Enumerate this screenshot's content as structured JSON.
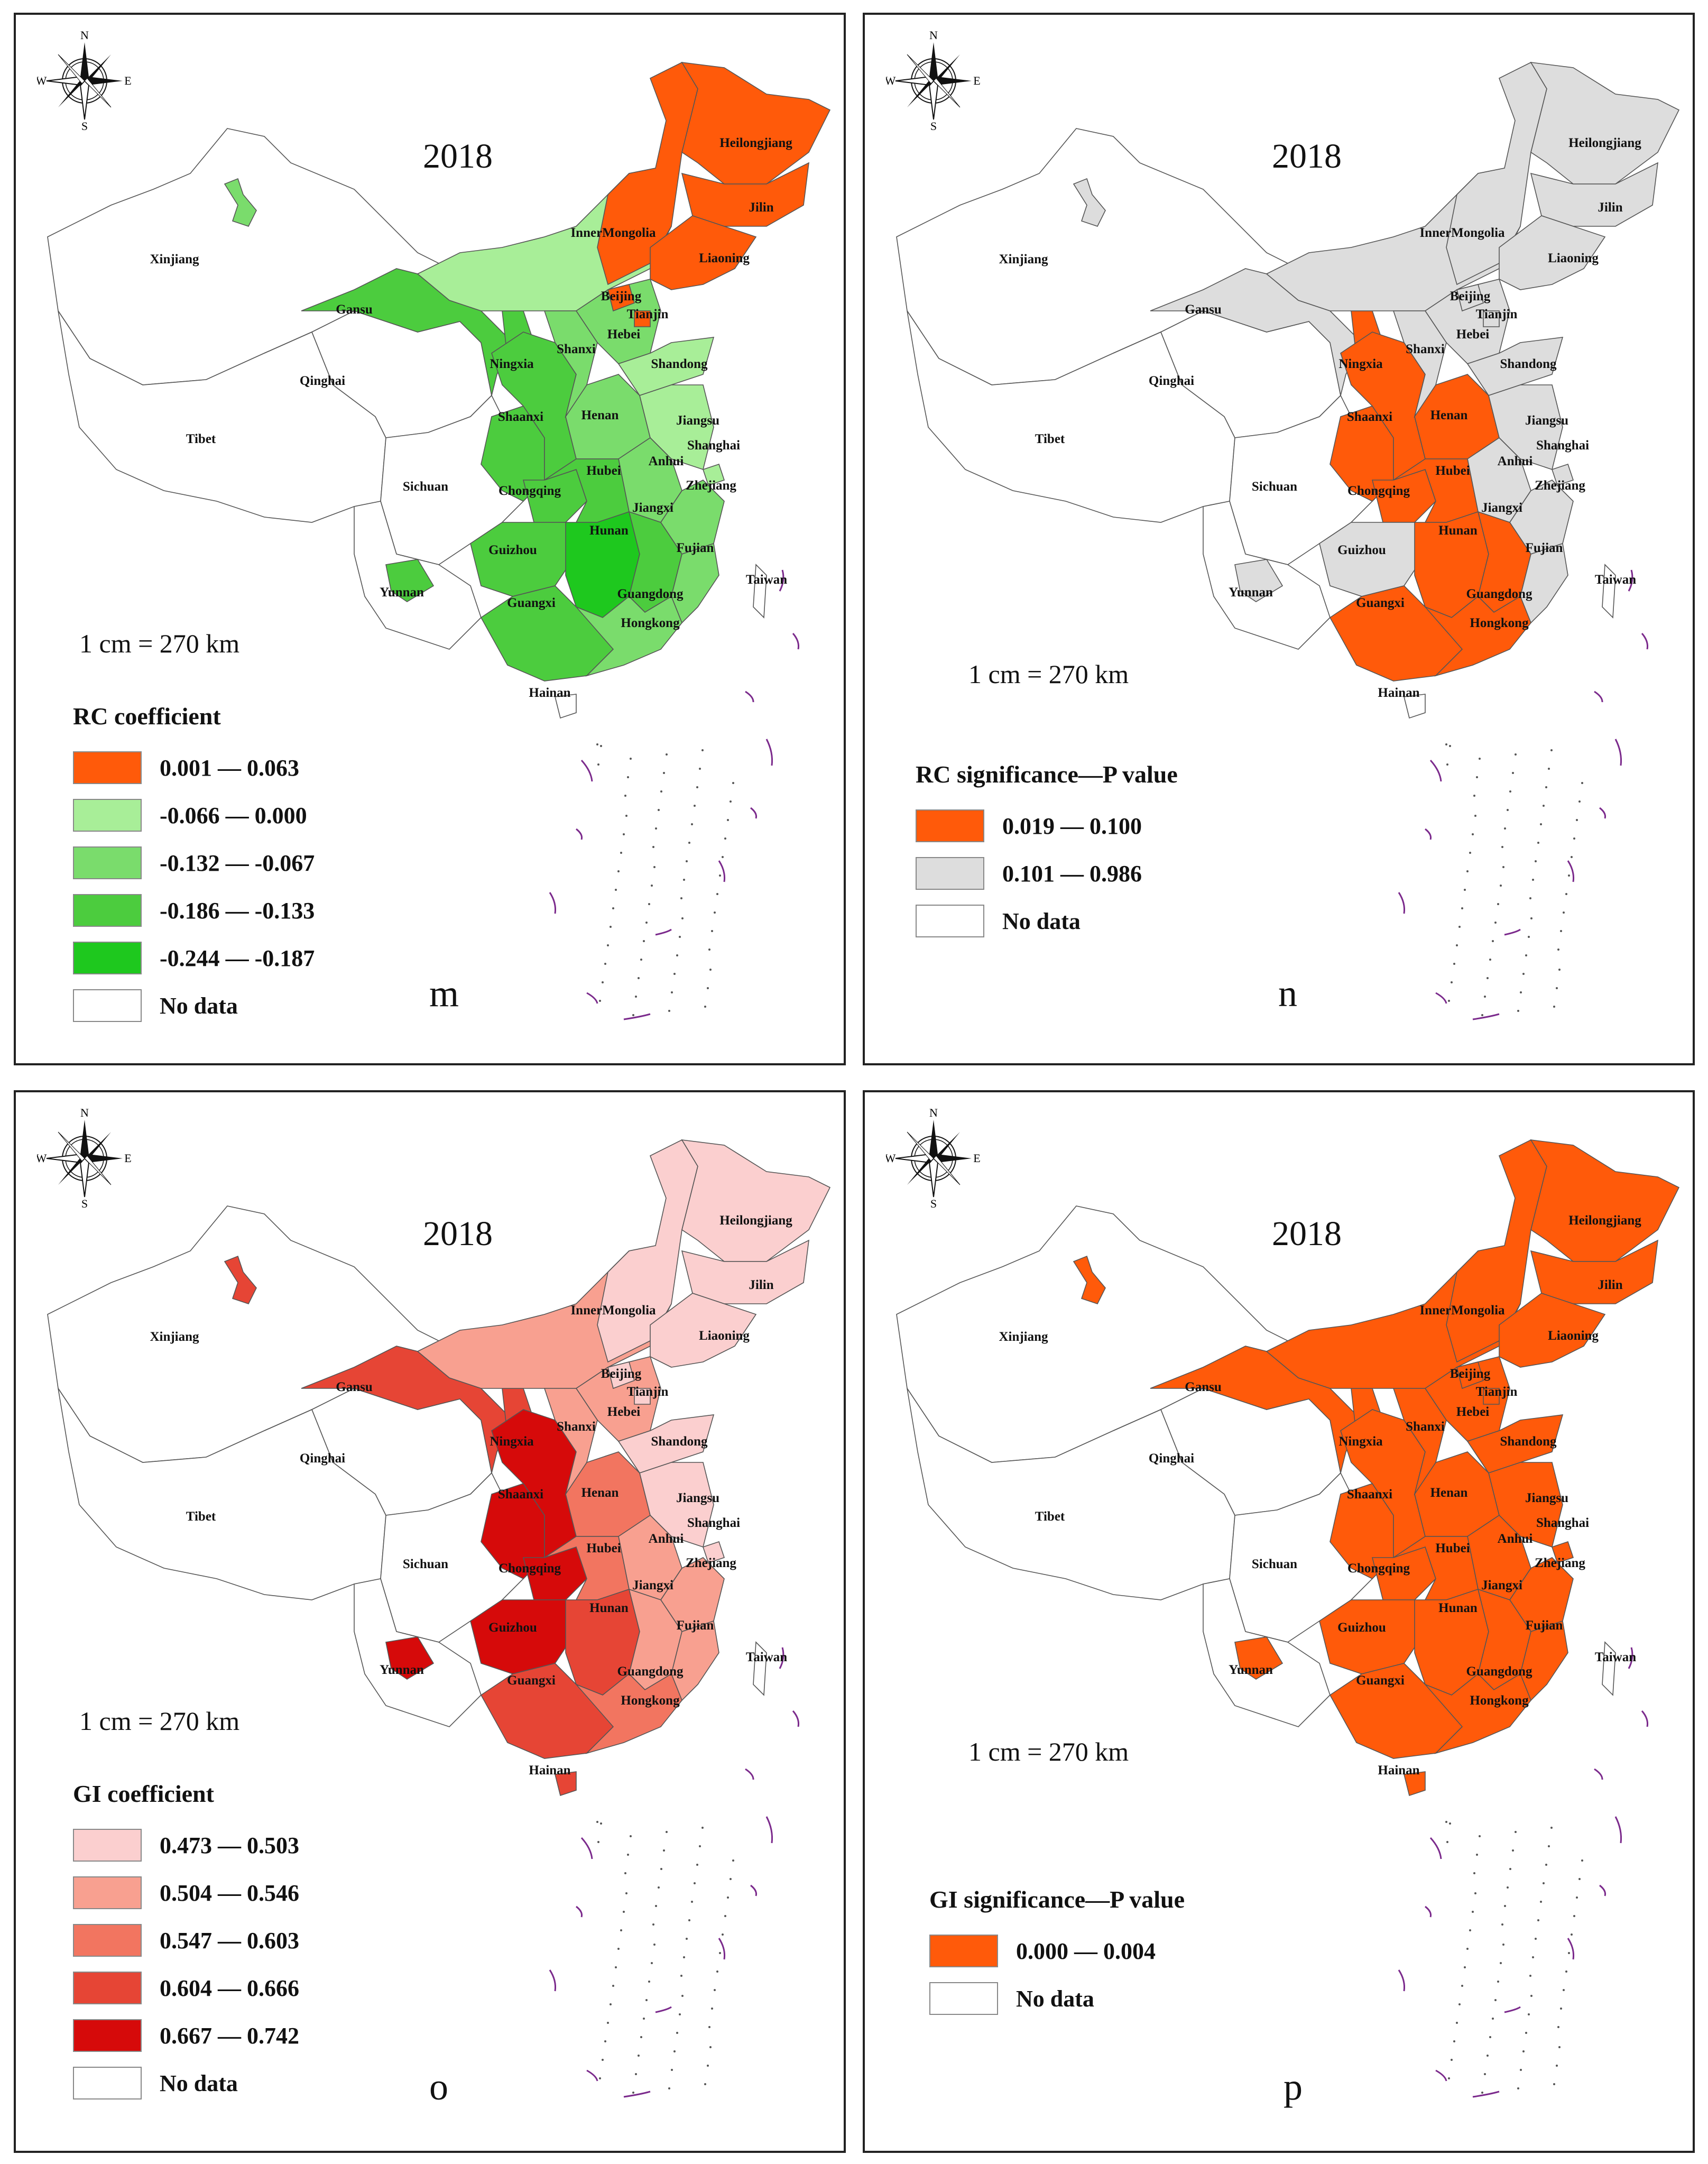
{
  "colors": {
    "no_data": "#ffffff",
    "border": "#555555",
    "frame": "#222222",
    "islands": "#7b2a8c"
  },
  "province_labels": [
    "Heilongjiang",
    "Jilin",
    "Liaoning",
    "InnerMongolia",
    "Beijing",
    "Tianjin",
    "Hebei",
    "Shandong",
    "Shanxi",
    "Ningxia",
    "Gansu",
    "Xinjiang",
    "Qinghai",
    "Tibet",
    "Shaanxi",
    "Henan",
    "Jiangsu",
    "Shanghai",
    "Anhui",
    "Hubei",
    "Zhejiang",
    "Sichuan",
    "Chongqing",
    "Jiangxi",
    "Hunan",
    "Guizhou",
    "Fujian",
    "Taiwan",
    "Yunnan",
    "Guangxi",
    "Guangdong",
    "Hongkong",
    "Hainan"
  ],
  "panels": [
    {
      "id": "m",
      "year": "2018",
      "letter": "m",
      "scale_text": "1 cm = 270 km",
      "legend_title": "RC coefficient",
      "legend": [
        {
          "label": "0.001 — 0.063",
          "color": "#ff5a0a"
        },
        {
          "label": "-0.066 — 0.000",
          "color": "#a8ee98"
        },
        {
          "label": "-0.132 — -0.067",
          "color": "#7adc6c"
        },
        {
          "label": "-0.186 — -0.133",
          "color": "#4ccc3e"
        },
        {
          "label": "-0.244 — -0.187",
          "color": "#1ec81e"
        },
        {
          "label": "No data",
          "color": "#ffffff"
        }
      ],
      "province_fill": {
        "Heilongjiang": 0,
        "Jilin": 0,
        "Liaoning": 0,
        "InnerMongolia": 1,
        "InnerMongoliaEast": 0,
        "Beijing": 0,
        "Tianjin": 0,
        "Hebei": 2,
        "Shandong": 1,
        "Shanxi": 2,
        "Ningxia": 3,
        "Gansu": 3,
        "Xinjiang": 5,
        "XinjiangSpot": 2,
        "Qinghai": 5,
        "Tibet": 5,
        "Shaanxi": 3,
        "Henan": 2,
        "Jiangsu": 1,
        "Shanghai": 1,
        "Anhui": 2,
        "Hubei": 3,
        "Zhejiang": 2,
        "Sichuan": 5,
        "SichuanEast": 3,
        "Chongqing": 3,
        "Jiangxi": 3,
        "Hunan": 4,
        "Guizhou": 3,
        "Fujian": 2,
        "Taiwan": 5,
        "Yunnan": 5,
        "YunnanSpot": 3,
        "Guangxi": 3,
        "Guangdong": 2,
        "Hainan": 5
      }
    },
    {
      "id": "n",
      "year": "2018",
      "letter": "n",
      "scale_text": "1 cm = 270 km",
      "legend_title": "RC significance—P value",
      "legend": [
        {
          "label": "0.019 — 0.100",
          "color": "#ff5a0a"
        },
        {
          "label": "0.101 — 0.986",
          "color": "#dddddd"
        },
        {
          "label": "No data",
          "color": "#ffffff"
        }
      ],
      "province_fill": {
        "Heilongjiang": 1,
        "Jilin": 1,
        "Liaoning": 1,
        "InnerMongolia": 1,
        "InnerMongoliaEast": 1,
        "Beijing": 1,
        "Tianjin": 1,
        "Hebei": 1,
        "Shandong": 1,
        "Shanxi": 1,
        "Ningxia": 0,
        "Gansu": 1,
        "Xinjiang": 2,
        "XinjiangSpot": 1,
        "Qinghai": 2,
        "Tibet": 2,
        "Shaanxi": 0,
        "Henan": 0,
        "Jiangsu": 1,
        "Shanghai": 1,
        "Anhui": 1,
        "Hubei": 0,
        "Zhejiang": 1,
        "Sichuan": 2,
        "SichuanEast": 0,
        "Chongqing": 0,
        "Jiangxi": 0,
        "Hunan": 0,
        "Guizhou": 1,
        "Fujian": 1,
        "Taiwan": 2,
        "Yunnan": 2,
        "YunnanSpot": 1,
        "Guangxi": 0,
        "Guangdong": 0,
        "Hainan": 2
      }
    },
    {
      "id": "o",
      "year": "2018",
      "letter": "o",
      "scale_text": "1 cm = 270 km",
      "legend_title": "GI coefficient",
      "legend": [
        {
          "label": "0.473 — 0.503",
          "color": "#fbcfcf"
        },
        {
          "label": "0.504 — 0.546",
          "color": "#f8a090"
        },
        {
          "label": "0.547 — 0.603",
          "color": "#f27560"
        },
        {
          "label": "0.604 — 0.666",
          "color": "#e64535"
        },
        {
          "label": "0.667 — 0.742",
          "color": "#d60a0a"
        },
        {
          "label": "No data",
          "color": "#ffffff"
        }
      ],
      "province_fill": {
        "Heilongjiang": 0,
        "Jilin": 0,
        "Liaoning": 0,
        "InnerMongolia": 1,
        "InnerMongoliaEast": 0,
        "Beijing": 0,
        "Tianjin": 0,
        "Hebei": 1,
        "Shandong": 0,
        "Shanxi": 1,
        "Ningxia": 3,
        "Gansu": 3,
        "Xinjiang": 5,
        "XinjiangSpot": 3,
        "Qinghai": 5,
        "Tibet": 5,
        "Shaanxi": 4,
        "Henan": 2,
        "Jiangsu": 0,
        "Shanghai": 0,
        "Anhui": 1,
        "Hubei": 2,
        "Zhejiang": 1,
        "Sichuan": 5,
        "SichuanEast": 4,
        "Chongqing": 4,
        "Jiangxi": 1,
        "Hunan": 3,
        "Guizhou": 4,
        "Fujian": 1,
        "Taiwan": 5,
        "Yunnan": 5,
        "YunnanSpot": 4,
        "Guangxi": 3,
        "Guangdong": 2,
        "Hainan": 3
      }
    },
    {
      "id": "p",
      "year": "2018",
      "letter": "p",
      "scale_text": "1 cm = 270 km",
      "legend_title": "GI significance—P value",
      "legend": [
        {
          "label": "0.000 — 0.004",
          "color": "#ff5a0a"
        },
        {
          "label": "No data",
          "color": "#ffffff"
        }
      ],
      "province_fill": {
        "Heilongjiang": 0,
        "Jilin": 0,
        "Liaoning": 0,
        "InnerMongolia": 0,
        "InnerMongoliaEast": 0,
        "Beijing": 0,
        "Tianjin": 0,
        "Hebei": 0,
        "Shandong": 0,
        "Shanxi": 0,
        "Ningxia": 0,
        "Gansu": 0,
        "Xinjiang": 1,
        "XinjiangSpot": 0,
        "Qinghai": 1,
        "Tibet": 1,
        "Shaanxi": 0,
        "Henan": 0,
        "Jiangsu": 0,
        "Shanghai": 0,
        "Anhui": 0,
        "Hubei": 0,
        "Zhejiang": 0,
        "Sichuan": 1,
        "SichuanEast": 0,
        "Chongqing": 0,
        "Jiangxi": 0,
        "Hunan": 0,
        "Guizhou": 0,
        "Fujian": 0,
        "Taiwan": 1,
        "Yunnan": 1,
        "YunnanSpot": 0,
        "Guangxi": 0,
        "Guangdong": 0,
        "Hainan": 0
      }
    }
  ],
  "compass": {
    "n": "N",
    "s": "S",
    "e": "E",
    "w": "W"
  }
}
